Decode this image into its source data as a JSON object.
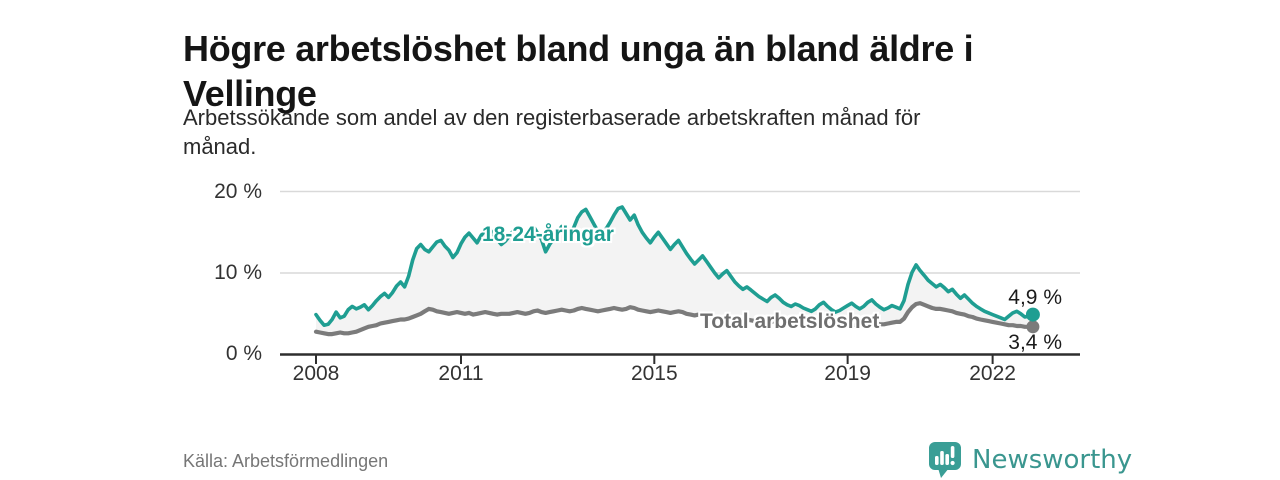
{
  "header": {
    "title_lines": [
      "Högre arbetslöshet bland unga än bland äldre i",
      "Vellinge"
    ],
    "subtitle_lines": [
      "Arbetssökande som andel av den registerbaserade arbetskraften månad för",
      "månad."
    ]
  },
  "chart_data": {
    "type": "line",
    "title": "Högre arbetslöshet bland unga än bland äldre i Vellinge",
    "subtitle": "Arbetssökande som andel av den registerbaserade arbetskraften månad för månad.",
    "unit": "%",
    "frequency": "monthly",
    "x_start": "2008-01",
    "x_end": "2022-11",
    "ylim": [
      0,
      20
    ],
    "grid": "horizontal",
    "legend_position": "inline-labels",
    "y_tick_labels": [
      "20 %",
      "10 %",
      "0 %"
    ],
    "y_tick_values": [
      20,
      10,
      0
    ],
    "x_tick_labels": [
      "2008",
      "2011",
      "2015",
      "2019",
      "2022"
    ],
    "area_fill_color": "#f3f3f3",
    "series": [
      {
        "name": "18-24-åringar",
        "color": "#1f9e92",
        "end_label": "4,9 %",
        "end_value": 4.9,
        "values": [
          4.9,
          4.2,
          3.6,
          3.7,
          4.3,
          5.2,
          4.5,
          4.7,
          5.5,
          5.9,
          5.6,
          5.8,
          6.1,
          5.5,
          6.0,
          6.6,
          7.1,
          7.5,
          7.0,
          7.6,
          8.4,
          8.9,
          8.3,
          9.6,
          11.6,
          13.0,
          13.5,
          12.9,
          12.6,
          13.2,
          13.8,
          14.0,
          13.3,
          12.8,
          11.9,
          12.5,
          13.6,
          14.4,
          14.9,
          14.3,
          13.7,
          14.6,
          15.2,
          15.5,
          14.7,
          14.1,
          13.5,
          13.9,
          14.5,
          15.2,
          15.6,
          14.9,
          14.3,
          15.0,
          15.7,
          14.9,
          14.1,
          12.6,
          13.5,
          14.2,
          15.0,
          15.7,
          15.2,
          14.6,
          15.6,
          16.8,
          17.5,
          17.8,
          16.9,
          16.0,
          15.1,
          14.4,
          15.4,
          16.2,
          17.1,
          17.9,
          18.1,
          17.3,
          16.5,
          17.1,
          15.9,
          15.0,
          14.3,
          13.7,
          14.4,
          15.0,
          14.3,
          13.6,
          12.9,
          13.5,
          14.0,
          13.2,
          12.4,
          11.7,
          11.1,
          11.6,
          12.1,
          11.4,
          10.7,
          10.0,
          9.4,
          9.9,
          10.3,
          9.6,
          8.9,
          8.4,
          8.0,
          8.3,
          7.9,
          7.5,
          7.1,
          6.8,
          6.5,
          7.0,
          7.3,
          6.9,
          6.4,
          6.1,
          5.9,
          6.2,
          6.0,
          5.7,
          5.5,
          5.3,
          5.6,
          6.1,
          6.4,
          5.9,
          5.5,
          5.2,
          5.4,
          5.7,
          6.0,
          6.3,
          5.9,
          5.6,
          5.9,
          6.4,
          6.7,
          6.2,
          5.8,
          5.5,
          5.7,
          6.0,
          5.8,
          5.6,
          6.6,
          8.6,
          10.1,
          11.0,
          10.3,
          9.7,
          9.1,
          8.7,
          8.3,
          8.6,
          8.2,
          7.7,
          8.0,
          7.4,
          6.9,
          7.3,
          6.8,
          6.3,
          5.9,
          5.6,
          5.3,
          5.1,
          4.9,
          4.7,
          4.5,
          4.3,
          4.7,
          5.1,
          5.3,
          5.0,
          4.6,
          4.7,
          4.9
        ]
      },
      {
        "name": "Total arbetslöshet",
        "color": "#7b7b7b",
        "end_label": "3,4 %",
        "end_value": 3.4,
        "values": [
          2.8,
          2.7,
          2.6,
          2.5,
          2.5,
          2.6,
          2.7,
          2.6,
          2.6,
          2.7,
          2.8,
          3.0,
          3.2,
          3.4,
          3.5,
          3.6,
          3.8,
          3.9,
          4.0,
          4.1,
          4.2,
          4.3,
          4.3,
          4.4,
          4.6,
          4.8,
          5.0,
          5.3,
          5.6,
          5.5,
          5.3,
          5.2,
          5.1,
          5.0,
          5.1,
          5.2,
          5.1,
          5.0,
          5.1,
          4.9,
          5.0,
          5.1,
          5.2,
          5.1,
          5.0,
          4.9,
          5.0,
          5.0,
          5.0,
          5.1,
          5.2,
          5.1,
          5.0,
          5.1,
          5.3,
          5.4,
          5.2,
          5.1,
          5.2,
          5.3,
          5.4,
          5.5,
          5.4,
          5.3,
          5.4,
          5.6,
          5.7,
          5.6,
          5.5,
          5.4,
          5.3,
          5.4,
          5.5,
          5.6,
          5.7,
          5.6,
          5.5,
          5.6,
          5.8,
          5.7,
          5.5,
          5.4,
          5.3,
          5.2,
          5.3,
          5.4,
          5.3,
          5.2,
          5.1,
          5.2,
          5.3,
          5.2,
          5.0,
          4.9,
          4.8,
          4.9,
          4.9,
          4.8,
          4.7,
          4.6,
          4.5,
          4.6,
          4.7,
          4.6,
          4.4,
          4.3,
          4.2,
          4.3,
          4.2,
          4.1,
          4.0,
          3.9,
          3.9,
          4.0,
          4.1,
          4.0,
          3.9,
          3.8,
          3.8,
          3.9,
          3.8,
          3.7,
          3.6,
          3.6,
          3.6,
          3.7,
          3.8,
          3.7,
          3.6,
          3.5,
          3.5,
          3.6,
          3.6,
          3.7,
          3.6,
          3.6,
          3.7,
          3.8,
          3.9,
          3.8,
          3.7,
          3.7,
          3.8,
          3.9,
          4.0,
          4.0,
          4.4,
          5.2,
          5.8,
          6.2,
          6.3,
          6.1,
          5.9,
          5.7,
          5.6,
          5.6,
          5.5,
          5.4,
          5.3,
          5.1,
          5.0,
          4.9,
          4.7,
          4.6,
          4.4,
          4.3,
          4.2,
          4.1,
          4.0,
          3.9,
          3.8,
          3.7,
          3.6,
          3.6,
          3.5,
          3.5,
          3.4,
          3.4,
          3.4
        ]
      }
    ]
  },
  "footer": {
    "source": "Källa: Arbetsförmedlingen",
    "brand": "Newsworthy",
    "brand_color": "#3a9e96"
  }
}
